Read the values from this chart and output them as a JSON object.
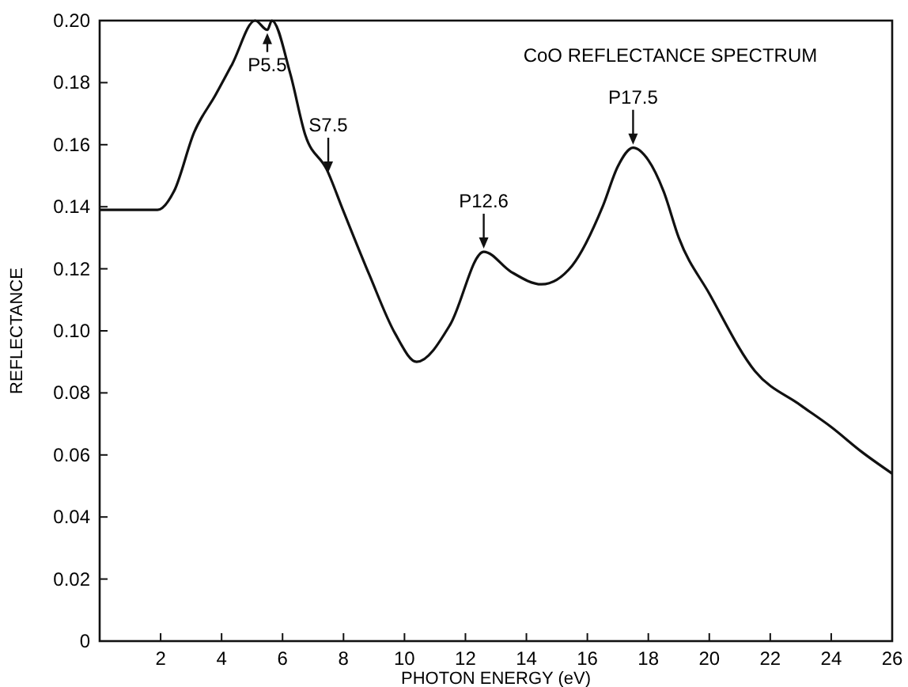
{
  "chart_data": {
    "type": "line",
    "title": "CoO REFLECTANCE SPECTRUM",
    "xlabel": "PHOTON ENERGY (eV)",
    "ylabel": "REFLECTANCE",
    "x": [
      0,
      1,
      1.9,
      2.44,
      3.1,
      3.8,
      4.35,
      5.1,
      5.5,
      5.65,
      6.25,
      6.75,
      7.45,
      7.98,
      8.85,
      9.7,
      10.4,
      11.5,
      12.6,
      13.5,
      14.5,
      15.5,
      16.5,
      17,
      17.5,
      18,
      18.5,
      19,
      20,
      21.5,
      23,
      24,
      25,
      26
    ],
    "series": [
      {
        "color": "#111111",
        "values": [
          0.139,
          0.139,
          0.139,
          0.145,
          0.164,
          0.176,
          0.186,
          0.2,
          0.197,
          0.2,
          0.183,
          0.163,
          0.152,
          0.139,
          0.118,
          0.099,
          0.09,
          0.102,
          0.1255,
          0.119,
          0.115,
          0.121,
          0.14,
          0.153,
          0.159,
          0.155,
          0.145,
          0.13,
          0.112,
          0.087,
          0.076,
          0.069,
          0.061,
          0.054
        ]
      }
    ],
    "xlim": [
      0,
      26
    ],
    "xticks": [
      2,
      4,
      6,
      8,
      10,
      12,
      14,
      16,
      18,
      20,
      22,
      24,
      26
    ],
    "ylim": [
      0,
      0.2
    ],
    "yticks": [
      {
        "value": 0,
        "label": "0"
      },
      {
        "value": 0.02,
        "label": "0.02"
      },
      {
        "value": 0.04,
        "label": "0.04"
      },
      {
        "value": 0.06,
        "label": "0.06"
      },
      {
        "value": 0.08,
        "label": "0.08"
      },
      {
        "value": 0.1,
        "label": "0.10"
      },
      {
        "value": 0.12,
        "label": "0.12"
      },
      {
        "value": 0.14,
        "label": "0.14"
      },
      {
        "value": 0.16,
        "label": "0.16"
      },
      {
        "value": 0.18,
        "label": "0.18"
      },
      {
        "value": 0.2,
        "label": "0.20"
      }
    ],
    "annotations": [
      {
        "text": "P5.5",
        "x": 5.5,
        "y": 0.197
      },
      {
        "text": "S7.5",
        "x": 7.5,
        "y": 0.15
      },
      {
        "text": "P12.6",
        "x": 12.6,
        "y": 0.1255
      },
      {
        "text": "P17.5",
        "x": 17.5,
        "y": 0.159
      }
    ],
    "marker": "none",
    "line_style": "solid"
  }
}
